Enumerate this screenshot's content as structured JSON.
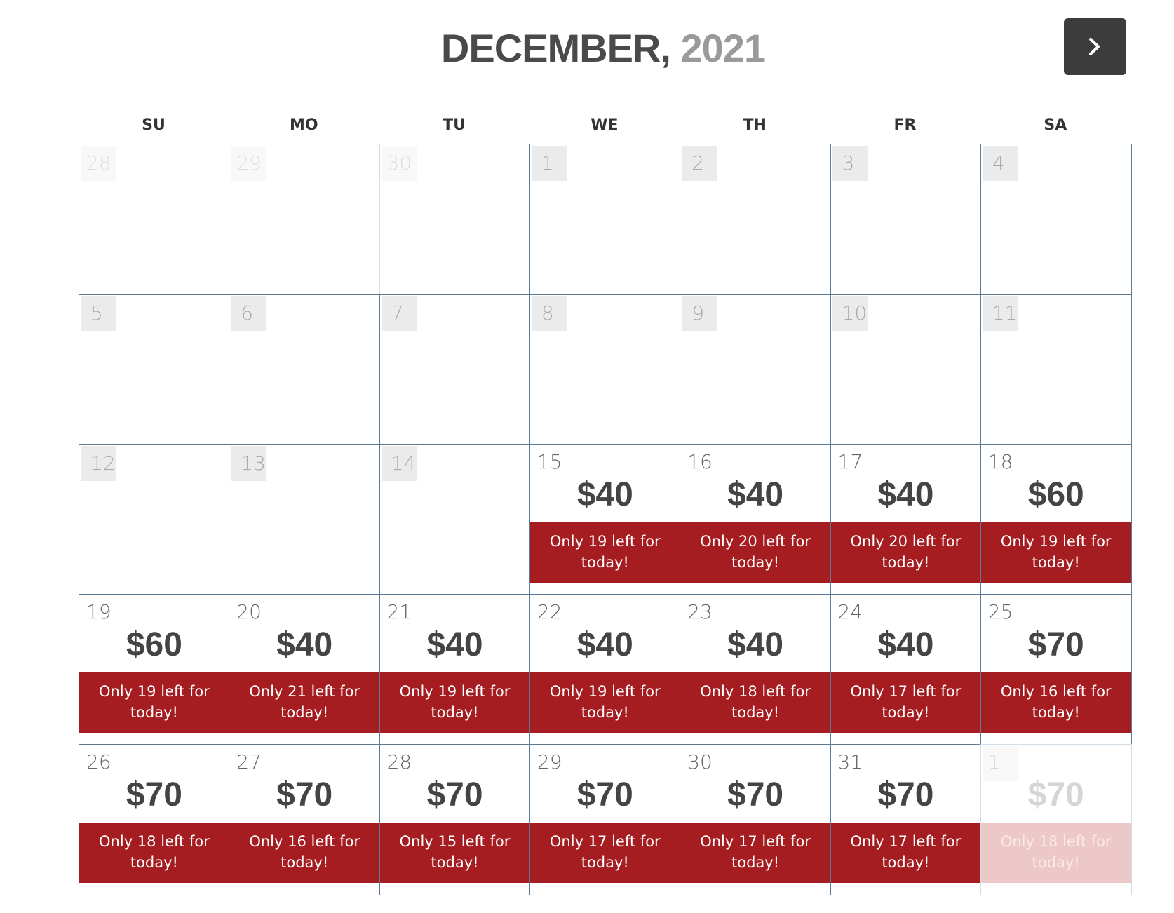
{
  "header": {
    "month": "DECEMBER,",
    "year": "2021"
  },
  "weekdays": [
    "SU",
    "MO",
    "TU",
    "WE",
    "TH",
    "FR",
    "SA"
  ],
  "weeks": [
    [
      {
        "day": 28,
        "state": "prev"
      },
      {
        "day": 29,
        "state": "prev"
      },
      {
        "day": 30,
        "state": "prev"
      },
      {
        "day": 1,
        "state": "past"
      },
      {
        "day": 2,
        "state": "past"
      },
      {
        "day": 3,
        "state": "past"
      },
      {
        "day": 4,
        "state": "past"
      }
    ],
    [
      {
        "day": 5,
        "state": "past"
      },
      {
        "day": 6,
        "state": "past"
      },
      {
        "day": 7,
        "state": "past"
      },
      {
        "day": 8,
        "state": "past"
      },
      {
        "day": 9,
        "state": "past"
      },
      {
        "day": 10,
        "state": "past"
      },
      {
        "day": 11,
        "state": "past"
      }
    ],
    [
      {
        "day": 12,
        "state": "past"
      },
      {
        "day": 13,
        "state": "past"
      },
      {
        "day": 14,
        "state": "past"
      },
      {
        "day": 15,
        "state": "open",
        "price": "$40",
        "note": "Only 19 left for today!"
      },
      {
        "day": 16,
        "state": "open",
        "price": "$40",
        "note": "Only 20 left for today!"
      },
      {
        "day": 17,
        "state": "open",
        "price": "$40",
        "note": "Only 20 left for today!"
      },
      {
        "day": 18,
        "state": "open",
        "price": "$60",
        "note": "Only 19 left for today!"
      }
    ],
    [
      {
        "day": 19,
        "state": "open",
        "price": "$60",
        "note": "Only 19 left for today!"
      },
      {
        "day": 20,
        "state": "open",
        "price": "$40",
        "note": "Only 21 left for today!"
      },
      {
        "day": 21,
        "state": "open",
        "price": "$40",
        "note": "Only 19 left for today!"
      },
      {
        "day": 22,
        "state": "open",
        "price": "$40",
        "note": "Only 19 left for today!"
      },
      {
        "day": 23,
        "state": "open",
        "price": "$40",
        "note": "Only 18 left for today!"
      },
      {
        "day": 24,
        "state": "open",
        "price": "$40",
        "note": "Only 17 left for today!"
      },
      {
        "day": 25,
        "state": "open",
        "price": "$70",
        "note": "Only 16 left for today!"
      }
    ],
    [
      {
        "day": 26,
        "state": "open",
        "price": "$70",
        "note": "Only 18 left for today!"
      },
      {
        "day": 27,
        "state": "open",
        "price": "$70",
        "note": "Only 16 left for today!"
      },
      {
        "day": 28,
        "state": "open",
        "price": "$70",
        "note": "Only 15 left for today!"
      },
      {
        "day": 29,
        "state": "open",
        "price": "$70",
        "note": "Only 17 left for today!"
      },
      {
        "day": 30,
        "state": "open",
        "price": "$70",
        "note": "Only 17 left for today!"
      },
      {
        "day": 31,
        "state": "open",
        "price": "$70",
        "note": "Only 17 left for today!"
      },
      {
        "day": 1,
        "state": "next",
        "price": "$70",
        "note": "Only 18 left for today!"
      }
    ]
  ]
}
